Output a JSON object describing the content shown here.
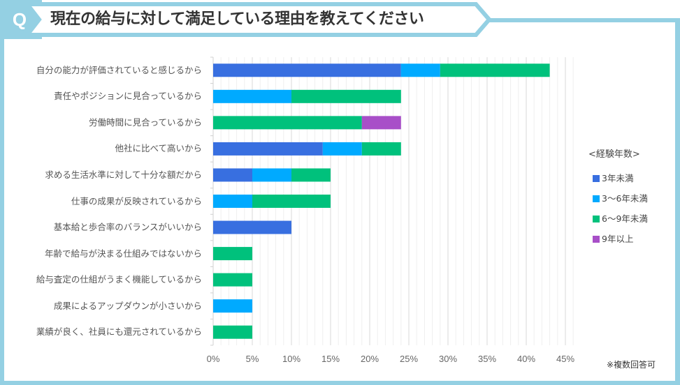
{
  "header": {
    "q_label": "Q",
    "title": "現在の給与に対して満足している理由を教えてください"
  },
  "note": "※複数回答可",
  "colors": {
    "frame": "#94D0E3",
    "series": [
      "#386FE0",
      "#00AAFF",
      "#00C17C",
      "#A84FC8"
    ]
  },
  "chart_data": {
    "type": "bar",
    "orientation": "horizontal",
    "stacked": true,
    "title": "現在の給与に対して満足している理由を教えてください",
    "xlabel": "",
    "ylabel": "",
    "xlim": [
      0,
      45
    ],
    "x_ticks": [
      "0%",
      "5%",
      "10%",
      "15%",
      "20%",
      "25%",
      "30%",
      "35%",
      "40%",
      "45%"
    ],
    "x_tick_values": [
      0,
      5,
      10,
      15,
      20,
      25,
      30,
      35,
      40,
      45
    ],
    "grid": true,
    "legend_title": "<経験年数>",
    "legend_position": "right",
    "categories": [
      "自分の能力が評価されていると感じるから",
      "責任やポジションに見合っているから",
      "労働時間に見合っているから",
      "他社に比べて高いから",
      "求める生活水準に対して十分な額だから",
      "仕事の成果が反映されているから",
      "基本給と歩合率のバランスがいいから",
      "年齢で給与が決まる仕組みではないから",
      "給与査定の仕組がうまく機能しているから",
      "成果によるアップダウンが小さいから",
      "業績が良く、社員にも還元されているから"
    ],
    "series": [
      {
        "name": "3年未満",
        "color": "#386FE0",
        "values": [
          24,
          0,
          0,
          14,
          5,
          0,
          10,
          0,
          0,
          0,
          0
        ]
      },
      {
        "name": "3〜6年未満",
        "color": "#00AAFF",
        "values": [
          5,
          10,
          0,
          5,
          5,
          5,
          0,
          0,
          0,
          5,
          0
        ]
      },
      {
        "name": "6〜9年未満",
        "color": "#00C17C",
        "values": [
          14,
          14,
          19,
          5,
          5,
          10,
          0,
          5,
          5,
          0,
          5
        ]
      },
      {
        "name": "9年以上",
        "color": "#A84FC8",
        "values": [
          0,
          0,
          5,
          0,
          0,
          0,
          0,
          0,
          0,
          0,
          0
        ]
      }
    ],
    "note": "※複数回答可"
  }
}
